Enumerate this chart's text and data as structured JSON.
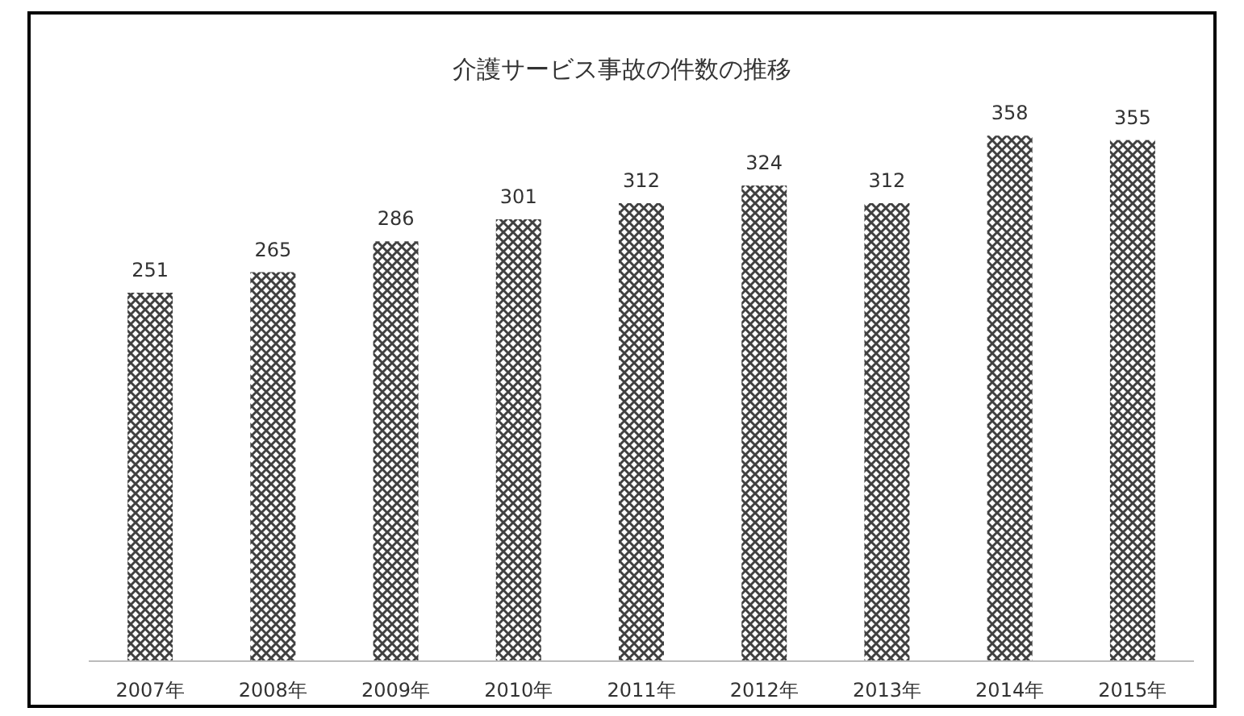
{
  "chart_data": {
    "type": "bar",
    "title": "介護サービス事故の件数の推移",
    "categories": [
      "2007年",
      "2008年",
      "2009年",
      "2010年",
      "2011年",
      "2012年",
      "2013年",
      "2014年",
      "2015年"
    ],
    "values": [
      251,
      265,
      286,
      301,
      312,
      324,
      312,
      358,
      355
    ],
    "color": "#404040",
    "data_labels": true
  }
}
